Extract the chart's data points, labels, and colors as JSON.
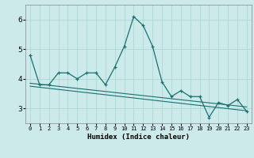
{
  "x_main": [
    0,
    1,
    2,
    3,
    4,
    5,
    6,
    7,
    8,
    9,
    10,
    11,
    12,
    13,
    14,
    15,
    16,
    17,
    18,
    19,
    20,
    21,
    22,
    23
  ],
  "y_main": [
    4.8,
    3.8,
    3.8,
    4.2,
    4.2,
    4.0,
    4.2,
    4.2,
    3.8,
    4.4,
    5.1,
    6.1,
    5.8,
    5.1,
    3.9,
    3.4,
    3.6,
    3.4,
    3.4,
    2.7,
    3.2,
    3.1,
    3.3,
    2.9
  ],
  "trendline_start_y": 3.85,
  "trendline_end_y": 3.05,
  "trendline2_start_y": 3.75,
  "trendline2_end_y": 2.92,
  "bg_color": "#cdeaea",
  "grid_color": "#a8d4d4",
  "line_color": "#1a7070",
  "xlabel": "Humidex (Indice chaleur)",
  "yticks": [
    3,
    4,
    5,
    6
  ],
  "ylim": [
    2.5,
    6.5
  ],
  "xlim": [
    -0.5,
    23.5
  ]
}
